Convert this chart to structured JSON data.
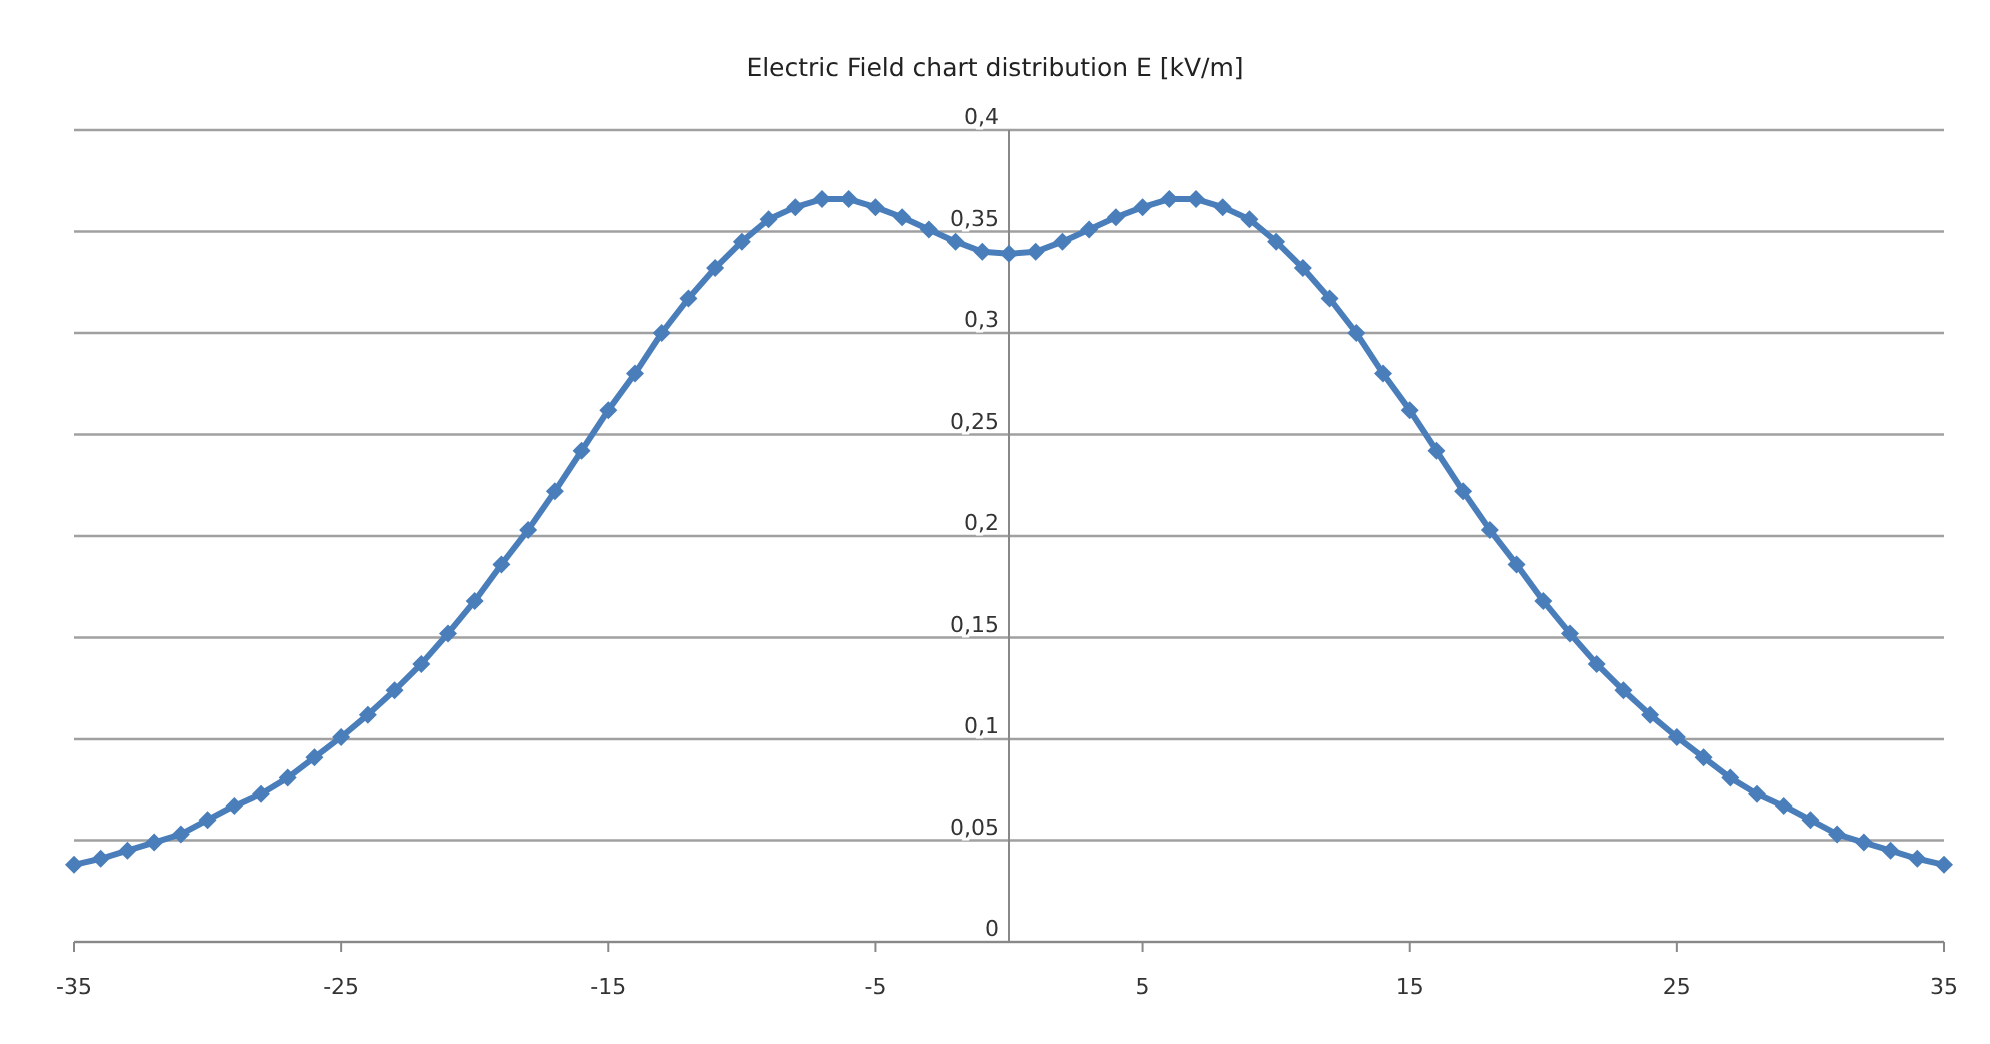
{
  "chart_data": {
    "type": "line",
    "title": "Electric Field chart distribution E [kV/m]",
    "x": [
      -35,
      -34,
      -33,
      -32,
      -31,
      -30,
      -29,
      -28,
      -27,
      -26,
      -25,
      -24,
      -23,
      -22,
      -21,
      -20,
      -19,
      -18,
      -17,
      -16,
      -15,
      -14,
      -13,
      -12,
      -11,
      -10,
      -9,
      -8,
      -7,
      -6,
      -5,
      -4,
      -3,
      -2,
      -1,
      0,
      1,
      2,
      3,
      4,
      5,
      6,
      7,
      8,
      9,
      10,
      11,
      12,
      13,
      14,
      15,
      16,
      17,
      18,
      19,
      20,
      21,
      22,
      23,
      24,
      25,
      26,
      27,
      28,
      29,
      30,
      31,
      32,
      33,
      34,
      35
    ],
    "series": [
      {
        "color": "#4a7ebb",
        "values": [
          0.038,
          0.041,
          0.045,
          0.049,
          0.053,
          0.06,
          0.067,
          0.073,
          0.081,
          0.091,
          0.101,
          0.112,
          0.124,
          0.137,
          0.152,
          0.168,
          0.186,
          0.203,
          0.222,
          0.242,
          0.262,
          0.28,
          0.3,
          0.317,
          0.332,
          0.345,
          0.356,
          0.362,
          0.366,
          0.366,
          0.362,
          0.357,
          0.351,
          0.345,
          0.34,
          0.339,
          0.34,
          0.345,
          0.351,
          0.357,
          0.362,
          0.366,
          0.366,
          0.362,
          0.356,
          0.345,
          0.332,
          0.317,
          0.3,
          0.28,
          0.262,
          0.242,
          0.222,
          0.203,
          0.186,
          0.168,
          0.152,
          0.137,
          0.124,
          0.112,
          0.101,
          0.091,
          0.081,
          0.073,
          0.067,
          0.06,
          0.053,
          0.049,
          0.045,
          0.041,
          0.038
        ]
      }
    ],
    "xlim": [
      -35,
      35
    ],
    "xticks": [
      -35,
      -25,
      -15,
      -5,
      5,
      15,
      25,
      35
    ],
    "ylim": [
      0,
      0.4
    ],
    "yticks": [
      0,
      {
        "value": 0.05,
        "label": "0,05"
      },
      {
        "value": 0.1,
        "label": "0,1"
      },
      {
        "value": 0.15,
        "label": "0,15"
      },
      {
        "value": 0.2,
        "label": "0,2"
      },
      {
        "value": 0.25,
        "label": "0,25"
      },
      {
        "value": 0.3,
        "label": "0,3"
      },
      {
        "value": 0.35,
        "label": "0,35"
      },
      {
        "value": 0.4,
        "label": "0,4"
      }
    ],
    "grid": "y",
    "marker": "diamond",
    "line_style": "solid"
  }
}
